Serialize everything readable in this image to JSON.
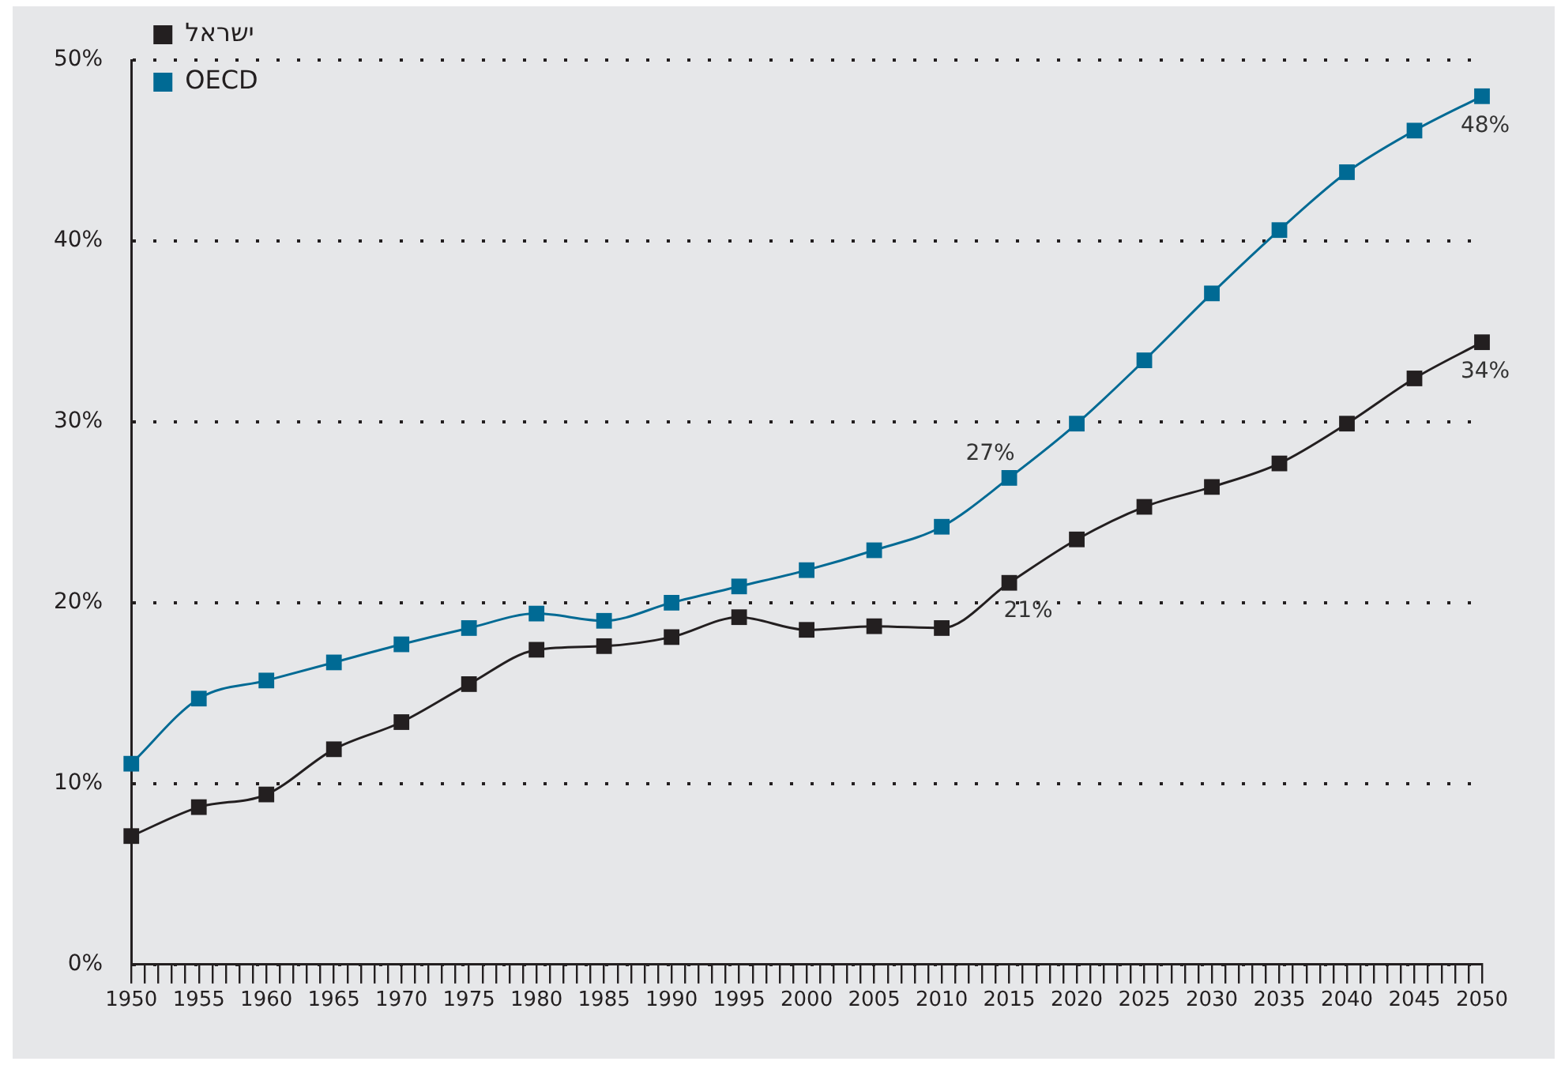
{
  "chart_data": {
    "type": "line",
    "x": [
      1950,
      1955,
      1960,
      1965,
      1970,
      1975,
      1980,
      1985,
      1990,
      1995,
      2000,
      2005,
      2010,
      2015,
      2020,
      2025,
      2030,
      2035,
      2040,
      2045,
      2050
    ],
    "series": [
      {
        "name": "ישראל",
        "color": "#231f20",
        "values": [
          7.1,
          8.7,
          9.4,
          11.9,
          13.4,
          15.5,
          17.4,
          17.6,
          18.1,
          19.2,
          18.5,
          18.7,
          18.6,
          21.1,
          23.5,
          25.3,
          26.4,
          27.7,
          29.9,
          32.4,
          34.4
        ],
        "value_labels": [
          null,
          null,
          null,
          null,
          null,
          null,
          null,
          null,
          null,
          null,
          null,
          null,
          null,
          "21%",
          null,
          null,
          null,
          null,
          null,
          null,
          "34%"
        ]
      },
      {
        "name": "OECD",
        "color": "#006a94",
        "values": [
          11.1,
          14.7,
          15.7,
          16.7,
          17.7,
          18.6,
          19.4,
          19.0,
          20.0,
          20.9,
          21.8,
          22.9,
          24.2,
          26.9,
          29.9,
          33.4,
          37.1,
          40.6,
          43.8,
          46.1,
          48.0
        ],
        "value_labels": [
          null,
          null,
          null,
          null,
          null,
          null,
          null,
          null,
          null,
          null,
          null,
          null,
          null,
          "27%",
          null,
          null,
          null,
          null,
          null,
          null,
          "48%"
        ]
      }
    ],
    "xlim": [
      1950,
      2050
    ],
    "xticks": [
      1950,
      {
        "value": 1951,
        "label": null
      },
      {
        "value": 1952,
        "label": null
      },
      {
        "value": 1953,
        "label": null
      },
      {
        "value": 1954,
        "label": null
      },
      1955,
      {
        "value": 1956,
        "label": null
      },
      {
        "value": 1957,
        "label": null
      },
      {
        "value": 1958,
        "label": null
      },
      {
        "value": 1959,
        "label": null
      },
      1960,
      {
        "value": 1961,
        "label": null
      },
      {
        "value": 1962,
        "label": null
      },
      {
        "value": 1963,
        "label": null
      },
      {
        "value": 1964,
        "label": null
      },
      1965,
      {
        "value": 1966,
        "label": null
      },
      {
        "value": 1967,
        "label": null
      },
      {
        "value": 1968,
        "label": null
      },
      {
        "value": 1969,
        "label": null
      },
      1970,
      {
        "value": 1971,
        "label": null
      },
      {
        "value": 1972,
        "label": null
      },
      {
        "value": 1973,
        "label": null
      },
      {
        "value": 1974,
        "label": null
      },
      1975,
      {
        "value": 1976,
        "label": null
      },
      {
        "value": 1977,
        "label": null
      },
      {
        "value": 1978,
        "label": null
      },
      {
        "value": 1979,
        "label": null
      },
      1980,
      {
        "value": 1981,
        "label": null
      },
      {
        "value": 1982,
        "label": null
      },
      {
        "value": 1983,
        "label": null
      },
      {
        "value": 1984,
        "label": null
      },
      1985,
      {
        "value": 1986,
        "label": null
      },
      {
        "value": 1987,
        "label": null
      },
      {
        "value": 1988,
        "label": null
      },
      {
        "value": 1989,
        "label": null
      },
      1990,
      {
        "value": 1991,
        "label": null
      },
      {
        "value": 1992,
        "label": null
      },
      {
        "value": 1993,
        "label": null
      },
      {
        "value": 1994,
        "label": null
      },
      1995,
      {
        "value": 1996,
        "label": null
      },
      {
        "value": 1997,
        "label": null
      },
      {
        "value": 1998,
        "label": null
      },
      {
        "value": 1999,
        "label": null
      },
      2000,
      {
        "value": 2001,
        "label": null
      },
      {
        "value": 2002,
        "label": null
      },
      {
        "value": 2003,
        "label": null
      },
      {
        "value": 2004,
        "label": null
      },
      2005,
      {
        "value": 2006,
        "label": null
      },
      {
        "value": 2007,
        "label": null
      },
      {
        "value": 2008,
        "label": null
      },
      {
        "value": 2009,
        "label": null
      },
      2010,
      {
        "value": 2011,
        "label": null
      },
      {
        "value": 2012,
        "label": null
      },
      {
        "value": 2013,
        "label": null
      },
      {
        "value": 2014,
        "label": null
      },
      2015,
      {
        "value": 2016,
        "label": null
      },
      {
        "value": 2017,
        "label": null
      },
      {
        "value": 2018,
        "label": null
      },
      {
        "value": 2019,
        "label": null
      },
      2020,
      {
        "value": 2021,
        "label": null
      },
      {
        "value": 2022,
        "label": null
      },
      {
        "value": 2023,
        "label": null
      },
      {
        "value": 2024,
        "label": null
      },
      2025,
      {
        "value": 2026,
        "label": null
      },
      {
        "value": 2027,
        "label": null
      },
      {
        "value": 2028,
        "label": null
      },
      {
        "value": 2029,
        "label": null
      },
      2030,
      {
        "value": 2031,
        "label": null
      },
      {
        "value": 2032,
        "label": null
      },
      {
        "value": 2033,
        "label": null
      },
      {
        "value": 2034,
        "label": null
      },
      2035,
      {
        "value": 2036,
        "label": null
      },
      {
        "value": 2037,
        "label": null
      },
      {
        "value": 2038,
        "label": null
      },
      {
        "value": 2039,
        "label": null
      },
      2040,
      {
        "value": 2041,
        "label": null
      },
      {
        "value": 2042,
        "label": null
      },
      {
        "value": 2043,
        "label": null
      },
      {
        "value": 2044,
        "label": null
      },
      2045,
      {
        "value": 2046,
        "label": null
      },
      {
        "value": 2047,
        "label": null
      },
      {
        "value": 2048,
        "label": null
      },
      {
        "value": 2049,
        "label": null
      },
      2050
    ],
    "ylim": [
      0,
      50
    ],
    "yticks": [
      {
        "value": 0,
        "label": "0%"
      },
      {
        "value": 10,
        "label": "10%"
      },
      {
        "value": 20,
        "label": "20%"
      },
      {
        "value": 30,
        "label": "30%"
      },
      {
        "value": 40,
        "label": "40%"
      },
      {
        "value": 50,
        "label": "50%"
      }
    ],
    "grid": "y",
    "legend": "top left",
    "marker": "square",
    "line_style": "solid"
  }
}
